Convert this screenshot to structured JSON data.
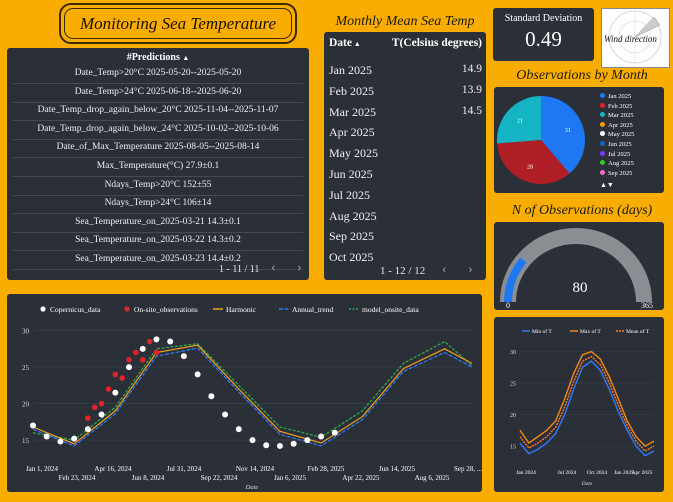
{
  "title": "Monitoring Sea Temperature",
  "predictions": {
    "header": "#Predictions",
    "rows": [
      "Date_Temp>20°C 2025-05-20--2025-05-20",
      "Date_Temp>24°C 2025-06-18--2025-06-20",
      "Date_Temp_drop_again_below_20°C 2025-11-04--2025-11-07",
      "Date_Temp_drop_again_below_24°C 2025-10-02--2025-10-06",
      "Date_of_Max_Temperature 2025-08-05--2025-08-14",
      "Max_Temperature(°C) 27.9±0.1",
      "Ndays_Temp>20°C 152±55",
      "Ndays_Temp>24°C 106±14",
      "Sea_Temperature_on_2025-03-21 14.3±0.1",
      "Sea_Temperature_on_2025-03-22 14.3±0.2",
      "Sea_Temperature_on_2025-03-23 14.4±0.2"
    ],
    "pager": "1 - 11 / 11"
  },
  "monthly": {
    "title": "Monthly Mean Sea Temp",
    "col_date": "Date",
    "col_temp": "T(Celsius degrees)",
    "rows": [
      {
        "month": "Jan 2025",
        "value": "14.9"
      },
      {
        "month": "Feb 2025",
        "value": "13.9"
      },
      {
        "month": "Mar 2025",
        "value": "14.5"
      },
      {
        "month": "Apr 2025",
        "value": ""
      },
      {
        "month": "May 2025",
        "value": ""
      },
      {
        "month": "Jun 2025",
        "value": ""
      },
      {
        "month": "Jul 2025",
        "value": ""
      },
      {
        "month": "Aug 2025",
        "value": ""
      },
      {
        "month": "Sep 2025",
        "value": ""
      },
      {
        "month": "Oct 2025",
        "value": ""
      }
    ],
    "pager": "1 - 12 / 12"
  },
  "stddev": {
    "label": "Standard Deviation",
    "value": "0.49"
  },
  "wind": {
    "label": "Wind direction"
  },
  "obs_month": {
    "title": "Observations by Month",
    "legend": [
      {
        "label": "Jan 2025",
        "color": "#1f77f4"
      },
      {
        "label": "Feb 2025",
        "color": "#e0242c"
      },
      {
        "label": "Mar 2025",
        "color": "#19b6c8"
      },
      {
        "label": "Apr 2025",
        "color": "#ff9900"
      },
      {
        "label": "May 2025",
        "color": "#ffffff"
      },
      {
        "label": "Jun 2025",
        "color": "#1565c0"
      },
      {
        "label": "Jul 2025",
        "color": "#7d3cff"
      },
      {
        "label": "Aug 2025",
        "color": "#33cc33"
      },
      {
        "label": "Sep 2025",
        "color": "#ff66cc"
      }
    ],
    "more": "▲▼"
  },
  "gauge": {
    "title": "N of Observations (days)",
    "value": 80,
    "min": 0,
    "max": 365,
    "value_label": "80",
    "min_label": "0",
    "max_label": "365"
  },
  "chart_data": [
    {
      "type": "line",
      "legend": [
        "Copernicus_data",
        "On-site_observations",
        "Harmonic",
        "Annual_trend",
        "model_onsite_data"
      ],
      "xlabel": "Date",
      "xticks_top": [
        "Jan 1, 2024",
        "Apr 16, 2024",
        "Jul 31, 2024",
        "Nov 14, 2024",
        "Feb 28, 2025",
        "Jun 14, 2025",
        "Sep 28, ..."
      ],
      "xticks_bottom": [
        "Feb 23, 2024",
        "Jun 8, 2024",
        "Sep 22, 2024",
        "Jan 6, 2025",
        "Apr 22, 2025",
        "Aug 6, 2025"
      ],
      "yticks": [
        "15",
        "20",
        "25",
        "30"
      ],
      "ylim": [
        12,
        32
      ],
      "series": [
        {
          "name": "Copernicus_data",
          "x": [
            0,
            20,
            40,
            60,
            80,
            100,
            120,
            140,
            160,
            180,
            200,
            220,
            240,
            260,
            280,
            300,
            320,
            340,
            360,
            380,
            400,
            420,
            440
          ],
          "values": [
            17,
            15.5,
            14.8,
            15.2,
            16.5,
            18.5,
            21.5,
            25,
            27.5,
            28.8,
            28.5,
            26.5,
            24,
            21,
            18.5,
            16.5,
            15,
            14.3,
            14.2,
            14.5,
            15,
            15.5,
            16
          ]
        },
        {
          "name": "On-site_observations",
          "x": [
            80,
            90,
            100,
            110,
            120,
            130,
            140,
            150,
            160,
            170,
            180
          ],
          "values": [
            18,
            19.5,
            20,
            22,
            24,
            23.5,
            26,
            27,
            26,
            28.5,
            27
          ]
        },
        {
          "name": "Harmonic",
          "x": [
            0,
            60,
            120,
            180,
            240,
            300,
            360,
            420,
            480,
            540,
            600,
            640
          ],
          "values": [
            16.8,
            14.5,
            19,
            27,
            28,
            22,
            16.2,
            14.6,
            18.2,
            24.8,
            27.5,
            25.5
          ]
        },
        {
          "name": "Annual_trend",
          "x": [
            0,
            60,
            120,
            180,
            240,
            300,
            360,
            420,
            480,
            540,
            600,
            640
          ],
          "values": [
            16.5,
            14.2,
            18.6,
            26.5,
            27.6,
            21.6,
            15.8,
            14.2,
            17.8,
            24.4,
            27,
            25
          ]
        },
        {
          "name": "model_onsite_data",
          "x": [
            0,
            60,
            120,
            180,
            240,
            300,
            360,
            420,
            480,
            540,
            600,
            640
          ],
          "values": [
            16,
            15,
            19.5,
            27.5,
            28.2,
            22.5,
            16.8,
            15.4,
            19,
            25.5,
            28.5,
            25.2
          ]
        }
      ]
    },
    {
      "type": "line",
      "legend": [
        "Min of T",
        "Max of T",
        "Mean of T"
      ],
      "xlabel": "Date",
      "xticks": [
        "Jan 2024",
        "Jul 2024",
        "Oct 2024",
        "Jan 2025",
        "Apr 2025"
      ],
      "yticks": [
        "15",
        "20",
        "25",
        "30"
      ],
      "ylim": [
        12,
        32
      ],
      "series": [
        {
          "name": "Min of T",
          "values": [
            15.5,
            13.8,
            14.5,
            15.5,
            17,
            20,
            24,
            27.5,
            28.5,
            27,
            24,
            20.5,
            17.5,
            15,
            13.5,
            14.2
          ]
        },
        {
          "name": "Max of T",
          "values": [
            17.5,
            15.5,
            16.5,
            17.5,
            19,
            22.5,
            26.5,
            29.5,
            30,
            28.8,
            26,
            22.5,
            19,
            16.5,
            15,
            15.8
          ]
        },
        {
          "name": "Mean of T",
          "values": [
            16.5,
            14.7,
            15.5,
            16.5,
            18,
            21.2,
            25.2,
            28.5,
            29.2,
            27.9,
            25,
            21.5,
            18.2,
            15.8,
            14.2,
            15
          ]
        }
      ]
    },
    {
      "type": "pie",
      "labels": [
        "Jan 2025",
        "Feb 2025",
        "Mar 2025"
      ],
      "values": [
        31,
        28,
        21
      ],
      "colors": [
        "#1f77f4",
        "#b01e26",
        "#14b4c4"
      ]
    }
  ]
}
